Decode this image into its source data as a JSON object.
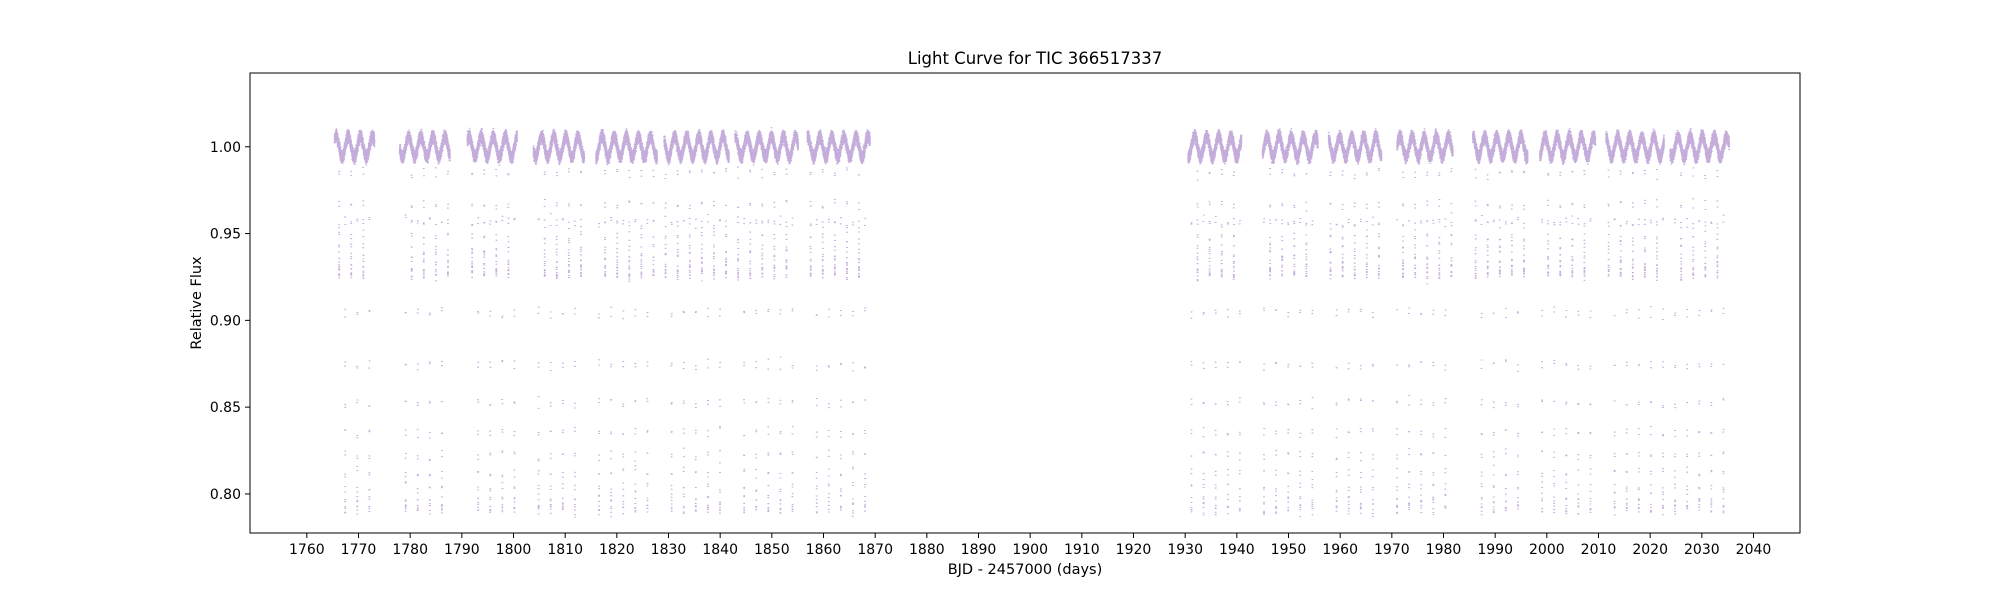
{
  "chart_data": {
    "type": "scatter",
    "title": "Light Curve for TIC 366517337",
    "xlabel": "BJD - 2457000 (days)",
    "ylabel": "Relative Flux",
    "xlim": [
      1749,
      2049
    ],
    "ylim": [
      0.7775,
      1.0425
    ],
    "x_ticks": [
      1760,
      1770,
      1780,
      1790,
      1800,
      1810,
      1820,
      1830,
      1840,
      1850,
      1860,
      1870,
      1880,
      1890,
      1900,
      1910,
      1920,
      1930,
      1940,
      1950,
      1960,
      1970,
      1980,
      1990,
      2000,
      2010,
      2020,
      2030,
      2040
    ],
    "y_ticks": [
      0.8,
      0.85,
      0.9,
      0.95,
      1.0
    ],
    "y_tick_labels": [
      "0.80",
      "0.85",
      "0.90",
      "0.95",
      "1.00"
    ],
    "grid": false,
    "legend": "none",
    "marker_color": "#9467bd",
    "baseline_flux": 1.0,
    "primary_eclipse_depth": 0.79,
    "secondary_eclipse_depth": 0.926,
    "orbital_period_days": 2.34,
    "segments": [
      {
        "start": 1765.3,
        "end": 1773.0
      },
      {
        "start": 1777.9,
        "end": 1787.6
      },
      {
        "start": 1791.0,
        "end": 1800.6
      },
      {
        "start": 1803.8,
        "end": 1813.6
      },
      {
        "start": 1815.9,
        "end": 1827.7
      },
      {
        "start": 1829.1,
        "end": 1841.6
      },
      {
        "start": 1842.8,
        "end": 1855.0
      },
      {
        "start": 1856.8,
        "end": 1868.9
      },
      {
        "start": 1930.5,
        "end": 1940.8
      },
      {
        "start": 1944.9,
        "end": 1955.6
      },
      {
        "start": 1957.7,
        "end": 1967.9
      },
      {
        "start": 1970.9,
        "end": 1981.7
      },
      {
        "start": 1985.6,
        "end": 1996.2
      },
      {
        "start": 1998.6,
        "end": 2009.3
      },
      {
        "start": 2011.4,
        "end": 2022.6
      },
      {
        "start": 2023.8,
        "end": 2035.2
      }
    ]
  }
}
